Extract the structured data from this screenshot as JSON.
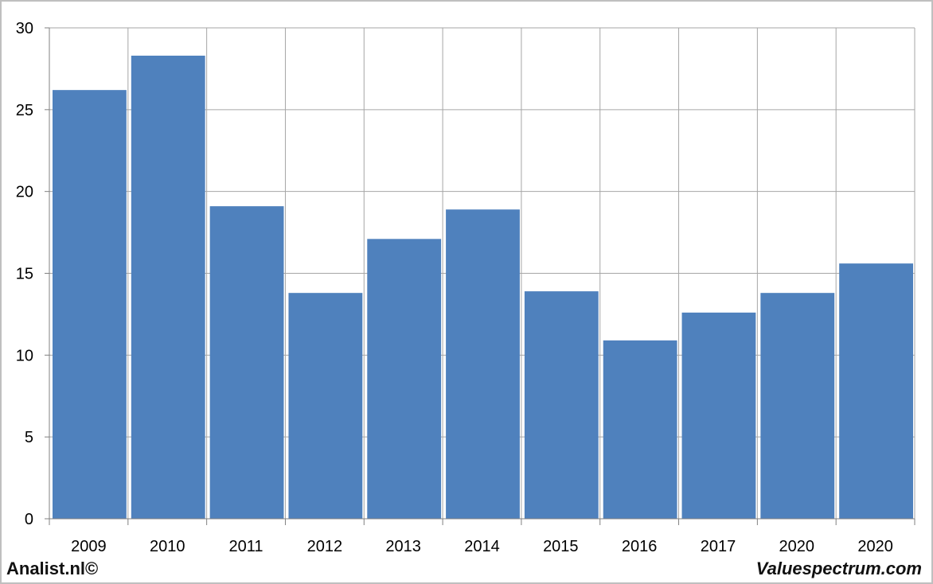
{
  "chart_data": {
    "type": "bar",
    "categories": [
      "2009",
      "2010",
      "2011",
      "2012",
      "2013",
      "2014",
      "2015",
      "2016",
      "2017",
      "2020",
      "2020"
    ],
    "values": [
      26.2,
      28.3,
      19.1,
      13.8,
      17.1,
      18.9,
      13.9,
      10.9,
      12.6,
      13.8,
      15.6
    ],
    "title": "",
    "xlabel": "",
    "ylabel": "",
    "ylim": [
      0,
      30
    ],
    "yticks": [
      "0",
      "5",
      "10",
      "15",
      "20",
      "25",
      "30"
    ],
    "grid": true,
    "legend": "none",
    "colors": {
      "bar": "#4f81bd",
      "grid": "#a6a6a6",
      "axis": "#808080"
    }
  },
  "footer": {
    "left": "Analist.nl©",
    "right": "Valuespectrum.com"
  }
}
